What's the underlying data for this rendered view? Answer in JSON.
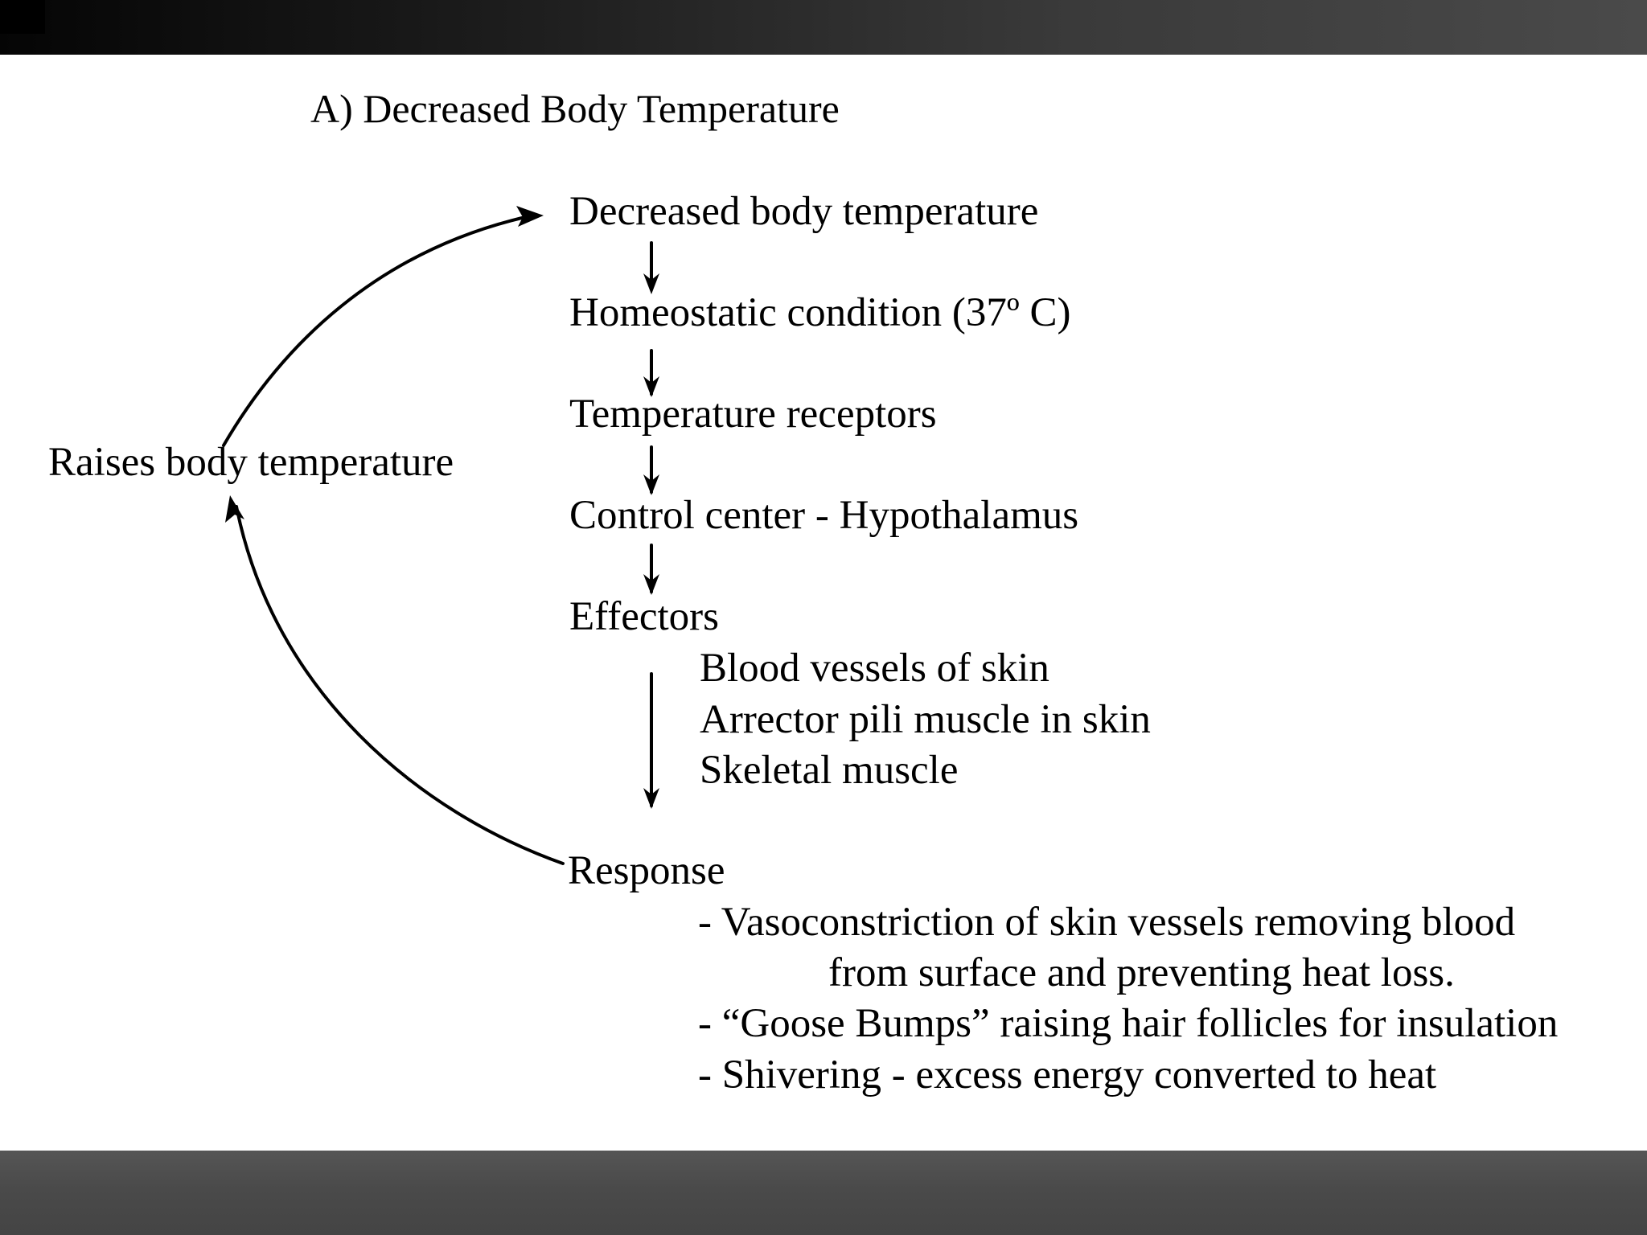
{
  "title": "A) Decreased Body Temperature",
  "flow": {
    "stimulus": "Decreased body temperature",
    "homeostatic": "Homeostatic condition  (37º C)",
    "receptors": "Temperature receptors",
    "control_center": "Control center - Hypothalamus",
    "effectors": "Effectors",
    "effector_items": [
      "Blood vessels of skin",
      "Arrector pili muscle in skin",
      "Skeletal muscle"
    ],
    "response": "Response",
    "response_items": [
      "- Vasoconstriction of skin vessels removing blood",
      "from surface and preventing heat loss.",
      "- “Goose Bumps” raising hair follicles for insulation",
      "- Shivering - excess energy converted to heat"
    ]
  },
  "feedback_label": "Raises body temperature",
  "colors": {
    "background": "#ffffff",
    "text": "#000000",
    "top_bar": "#2a2a2a",
    "bottom_bar": "#4a4a4a"
  }
}
